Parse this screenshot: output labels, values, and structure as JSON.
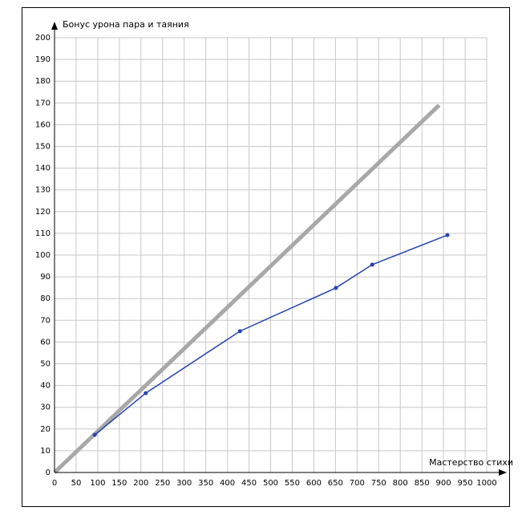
{
  "chart_data": {
    "type": "line",
    "y_label": "Бонус урона пара и таяния",
    "x_label": "Мастерство стихи",
    "xlim": [
      0,
      1000
    ],
    "xticks": [
      0,
      50,
      100,
      150,
      200,
      250,
      300,
      350,
      400,
      450,
      500,
      550,
      600,
      650,
      700,
      750,
      800,
      850,
      900,
      950,
      1000
    ],
    "ylim": [
      0,
      200
    ],
    "yticks": [
      0,
      10,
      20,
      30,
      40,
      50,
      60,
      70,
      80,
      90,
      100,
      110,
      120,
      130,
      140,
      150,
      160,
      170,
      180,
      190,
      200
    ],
    "grid": true,
    "series": [
      {
        "color": "#a8a8a8",
        "markers": false,
        "x": [
          0,
          890
        ],
        "values": [
          0,
          169
        ]
      },
      {
        "color": "#2443b5",
        "markers": true,
        "x": [
          93,
          211,
          429,
          651,
          735,
          909
        ],
        "values": [
          17.3,
          36.5,
          65,
          84.9,
          95.6,
          109.2
        ]
      }
    ]
  }
}
